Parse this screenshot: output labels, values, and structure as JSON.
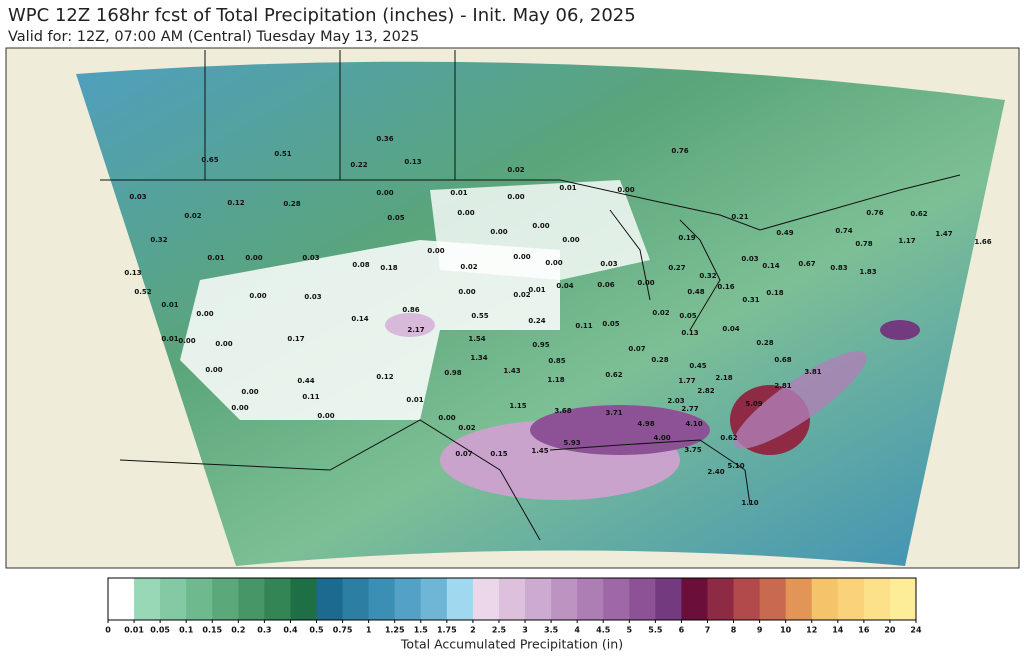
{
  "header": {
    "title": "WPC 12Z 168hr fcst of Total Precipitation (inches) - Init. May 06, 2025",
    "subtitle": "Valid for: 12Z, 07:00 AM (Central) Tuesday May 13, 2025"
  },
  "stations": {
    "values": [
      0.65,
      0.51,
      0.36,
      0.22,
      0.13,
      0.02,
      0.76,
      0.01,
      0.0,
      0.03,
      0.02,
      0.12,
      0.28,
      0.0,
      0.01,
      0.0,
      0.05,
      0.0,
      0.0,
      0.0,
      0.0,
      0.21,
      0.19,
      0.49,
      0.74,
      0.76,
      0.62,
      0.32,
      0.01,
      0.0,
      0.03,
      0.08,
      0.18,
      0.0,
      0.02,
      0.0,
      0.0,
      0.03,
      0.27,
      0.32,
      0.03,
      0.14,
      0.67,
      0.83,
      0.78,
      1.17,
      1.47,
      1.66,
      1.83,
      0.13,
      0.52,
      0.01,
      0.0,
      0.03,
      0.0,
      0.02,
      0.01,
      0.04,
      0.06,
      0.0,
      0.48,
      0.16,
      0.18,
      0.31,
      0.0,
      0.14,
      0.86,
      2.17,
      0.55,
      0.24,
      0.11,
      0.05,
      0.02,
      0.05,
      0.04,
      0.01,
      0.0,
      0.0,
      0.17,
      1.54,
      0.95,
      0.28,
      0.07,
      0.13,
      1.34,
      0.85,
      0.28,
      0.45,
      0.68,
      0.0,
      0.44,
      0.12,
      0.98,
      1.43,
      1.18,
      0.62,
      1.77,
      2.18,
      2.81,
      3.81,
      0.0,
      0.11,
      0.01,
      2.82,
      2.03,
      2.77,
      0.0,
      0.0,
      1.15,
      3.68,
      3.71,
      5.09,
      0.0,
      0.02,
      4.98,
      4.1,
      5.93,
      4.0,
      3.75,
      0.07,
      0.15,
      1.45,
      2.4,
      5.1,
      1.1,
      0.62
    ],
    "value_labels": [
      "0.65",
      "0.51",
      "0.36",
      "0.22",
      "0.13",
      "0.02",
      "0.76",
      "0.01",
      "0.00",
      "0.03",
      "0.02",
      "0.12",
      "0.28",
      "0.00",
      "0.01",
      "0.00",
      "0.05",
      "0.00",
      "0.00",
      "0.00",
      "0.00",
      "0.21",
      "0.19",
      "0.49",
      "0.74",
      "0.76",
      "0.62",
      "0.32",
      "0.01",
      "0.00",
      "0.03",
      "0.08",
      "0.18",
      "0.00",
      "0.02",
      "0.00",
      "0.00",
      "0.03",
      "0.27",
      "0.32",
      "0.03",
      "0.14",
      "0.67",
      "0.83",
      "0.78",
      "1.17",
      "1.47",
      "1.66",
      "1.83",
      "0.13",
      "0.52",
      "0.01",
      "0.00",
      "0.03",
      "0.00",
      "0.02",
      "0.01",
      "0.04",
      "0.06",
      "0.00",
      "0.48",
      "0.16",
      "0.18",
      "0.31",
      "0.00",
      "0.14",
      "0.86",
      "2.17",
      "0.55",
      "0.24",
      "0.11",
      "0.05",
      "0.02",
      "0.05",
      "0.04",
      "0.01",
      "0.00",
      "0.00",
      "0.17",
      "1.54",
      "0.95",
      "0.28",
      "0.07",
      "0.13",
      "1.34",
      "0.85",
      "0.28",
      "0.45",
      "0.68",
      "0.00",
      "0.44",
      "0.12",
      "0.98",
      "1.43",
      "1.18",
      "0.62",
      "1.77",
      "2.18",
      "2.81",
      "3.81",
      "0.00",
      "0.11",
      "0.01",
      "2.82",
      "2.03",
      "2.77",
      "0.00",
      "0.00",
      "1.15",
      "3.68",
      "3.71",
      "5.09",
      "0.00",
      "0.02",
      "4.98",
      "4.10",
      "5.93",
      "4.00",
      "3.75",
      "0.07",
      "0.15",
      "1.45",
      "2.40",
      "5.10",
      "1.10",
      "0.62"
    ]
  },
  "colorbar": {
    "label": "Total Accumulated Precipitation (in)",
    "ticks": [
      0,
      0.01,
      0.05,
      0.1,
      0.15,
      0.2,
      0.3,
      0.4,
      0.5,
      0.75,
      1,
      1.25,
      1.5,
      1.75,
      2,
      2.5,
      3,
      3.5,
      4,
      4.5,
      5,
      5.5,
      6,
      7,
      8,
      9,
      10,
      12,
      14,
      16,
      20,
      24
    ],
    "colors": [
      "#ffffff",
      "#98d8b7",
      "#83c9a3",
      "#6fb98f",
      "#5ba87b",
      "#479668",
      "#348556",
      "#1e6f45",
      "#1d6a90",
      "#2c7ea3",
      "#3b8fb5",
      "#53a2c6",
      "#6fb6d6",
      "#a0d8ef",
      "#ecd6ea",
      "#dcc0dc",
      "#cdaacf",
      "#bd94c1",
      "#ad7eb3",
      "#9d68a5",
      "#8d5296",
      "#733a7f",
      "#6b0f3a",
      "#8e2a44",
      "#b24a4c",
      "#c86a4f",
      "#e39557",
      "#f5c46a",
      "#f9d27a",
      "#fce08a",
      "#fdec98",
      "#fff89e"
    ]
  }
}
